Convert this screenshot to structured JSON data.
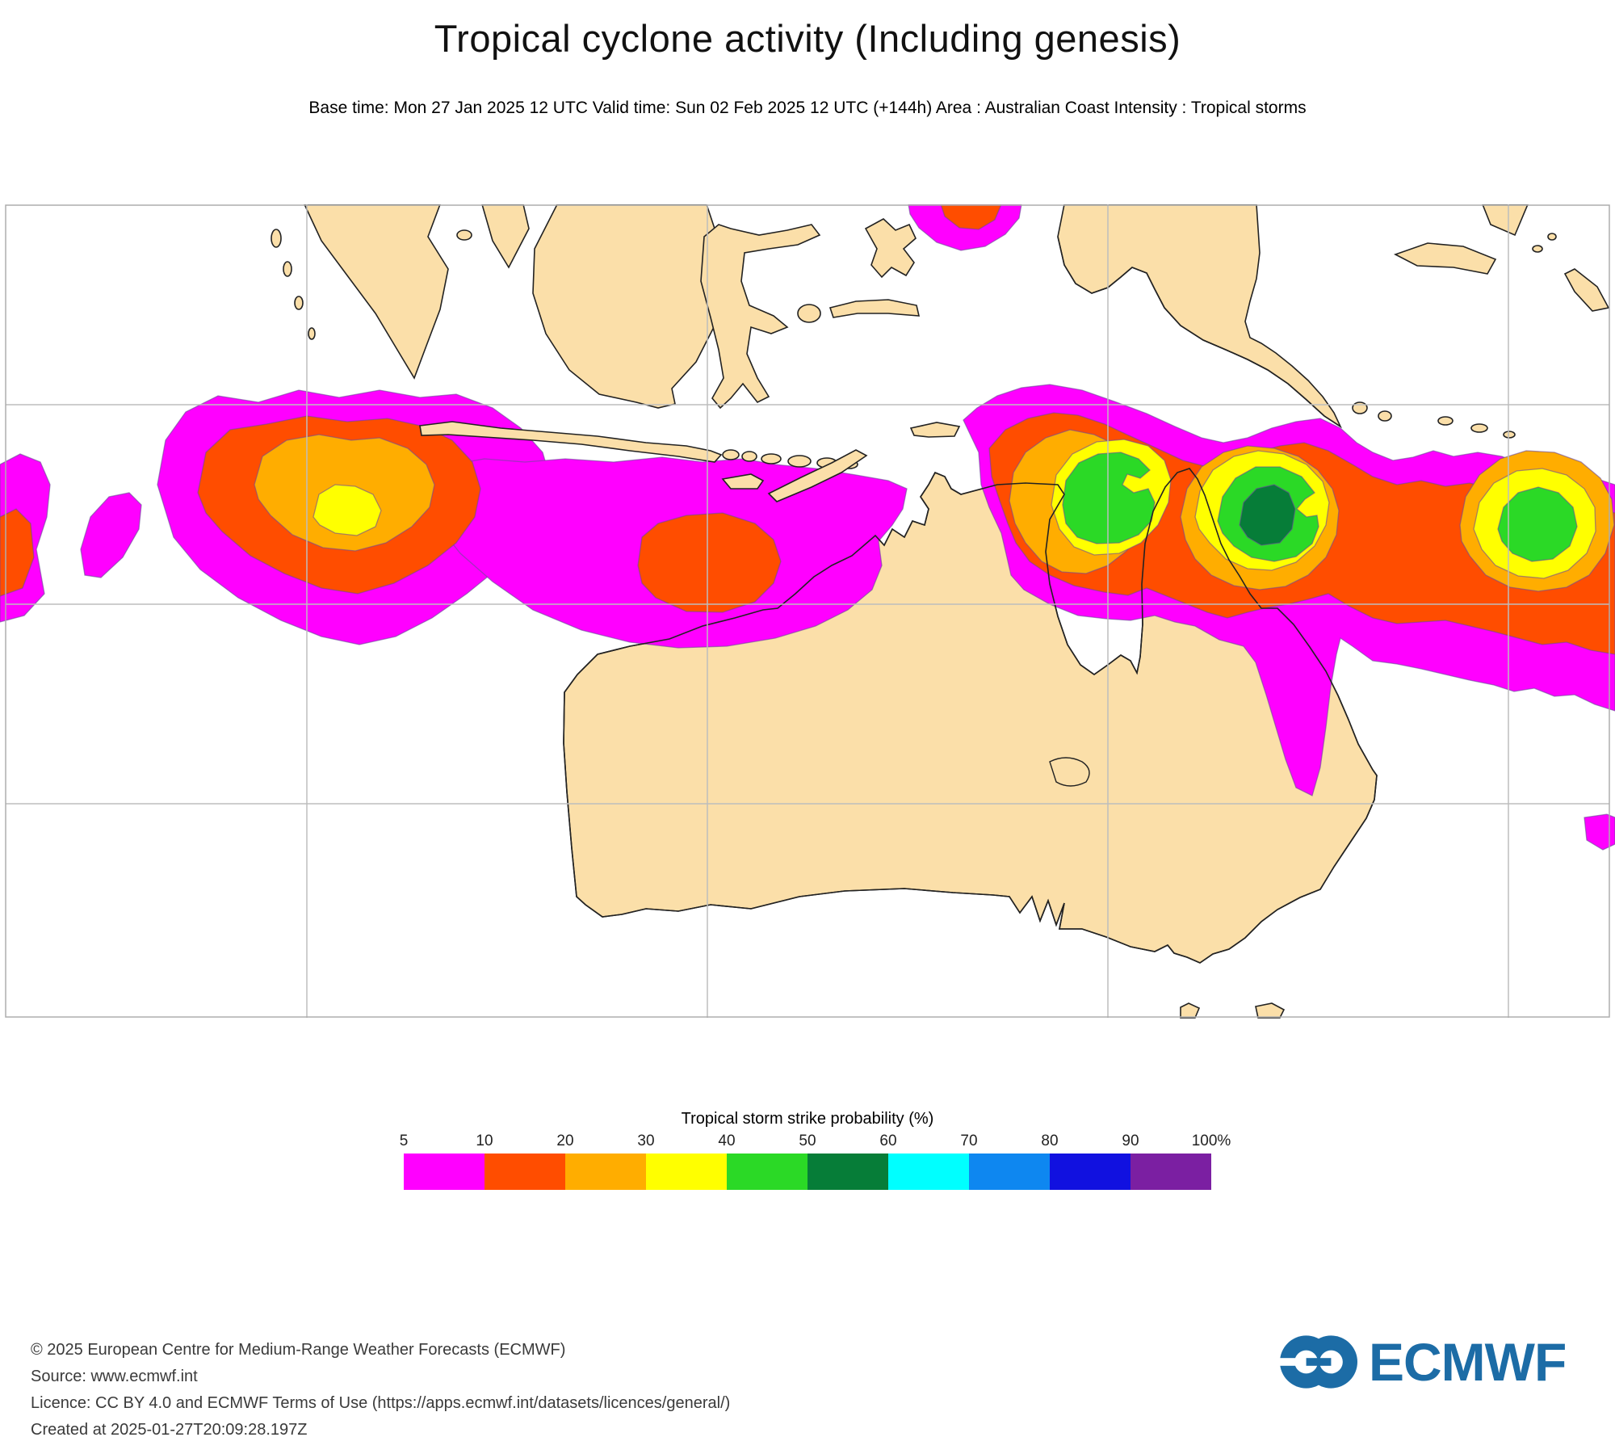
{
  "header": {
    "title": "Tropical cyclone activity (Including genesis)",
    "subtitle": "Base time: Mon 27 Jan 2025 12 UTC Valid time: Sun 02 Feb 2025 12 UTC (+144h) Area : Australian Coast Intensity : Tropical storms"
  },
  "map": {
    "colors": {
      "land": "#FBDFA9",
      "coastline": "#222222",
      "graticule": "#BDBDBD",
      "frame": "#ADADAD",
      "prob_5": "#FF00FF",
      "prob_10": "#FF4D00",
      "prob_20": "#FFAD00",
      "prob_30": "#FFFF00",
      "prob_40": "#2BD926",
      "prob_50": "#067D38",
      "contour_line": "#6A4A9A"
    }
  },
  "legend": {
    "title": "Tropical storm strike probability (%)",
    "ticks": [
      "5",
      "10",
      "20",
      "30",
      "40",
      "50",
      "60",
      "70",
      "80",
      "90",
      "100%"
    ],
    "colors": [
      "#FF00FF",
      "#FF4D00",
      "#FFAD00",
      "#FFFF00",
      "#2BD926",
      "#067D38",
      "#00FFFF",
      "#0E87F0",
      "#1111E0",
      "#7B1FA2"
    ]
  },
  "footer": {
    "lines": [
      "© 2025 European Centre for Medium-Range Weather Forecasts (ECMWF)",
      "Source: www.ecmwf.int",
      "Licence: CC BY 4.0 and ECMWF Terms of Use (https://apps.ecmwf.int/datasets/licences/general/)",
      "Created at 2025-01-27T20:09:28.197Z"
    ],
    "logo_text": "ECMWF",
    "logo_color": "#1C6CA6"
  }
}
